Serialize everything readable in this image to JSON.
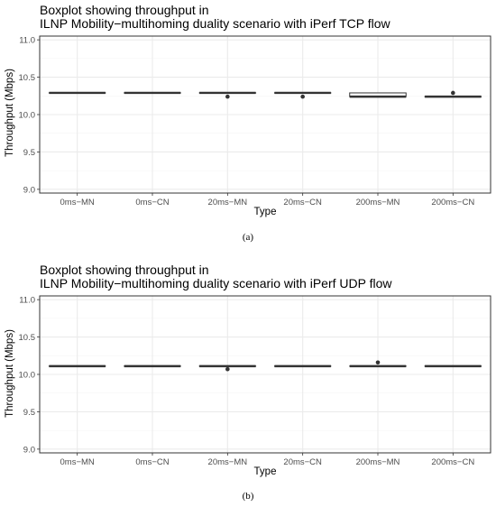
{
  "chart_data": [
    {
      "type": "boxplot",
      "title_lines": [
        "Boxplot showing throughput in",
        "ILNP Mobility−multihoming duality scenario with iPerf TCP flow"
      ],
      "xlabel": "Type",
      "ylabel": "Throughput (Mbps)",
      "ylim": [
        8.95,
        11.05
      ],
      "yticks": [
        9.0,
        9.5,
        10.0,
        10.5,
        11.0
      ],
      "ytick_labels": [
        "9.0",
        "9.5",
        "10.0",
        "10.5",
        "11.0"
      ],
      "grid": true,
      "categories": [
        "0ms−MN",
        "0ms−CN",
        "20ms−MN",
        "20ms−CN",
        "200ms−MN",
        "200ms−CN"
      ],
      "boxes": [
        {
          "q1": 10.29,
          "median": 10.29,
          "q3": 10.29,
          "outliers": []
        },
        {
          "q1": 10.29,
          "median": 10.29,
          "q3": 10.29,
          "outliers": []
        },
        {
          "q1": 10.29,
          "median": 10.29,
          "q3": 10.29,
          "outliers": [
            10.24
          ]
        },
        {
          "q1": 10.29,
          "median": 10.29,
          "q3": 10.29,
          "outliers": [
            10.24
          ]
        },
        {
          "q1": 10.24,
          "median": 10.24,
          "q3": 10.29,
          "outliers": []
        },
        {
          "q1": 10.24,
          "median": 10.24,
          "q3": 10.24,
          "outliers": [
            10.29
          ]
        }
      ],
      "caption": "(a)"
    },
    {
      "type": "boxplot",
      "title_lines": [
        "Boxplot showing throughput in",
        "ILNP Mobility−multihoming duality scenario with iPerf UDP flow"
      ],
      "xlabel": "Type",
      "ylabel": "Throughput (Mbps)",
      "ylim": [
        8.95,
        11.05
      ],
      "yticks": [
        9.0,
        9.5,
        10.0,
        10.5,
        11.0
      ],
      "ytick_labels": [
        "9.0",
        "9.5",
        "10.0",
        "10.5",
        "11.0"
      ],
      "grid": true,
      "categories": [
        "0ms−MN",
        "0ms−CN",
        "20ms−MN",
        "20ms−CN",
        "200ms−MN",
        "200ms−CN"
      ],
      "boxes": [
        {
          "q1": 10.11,
          "median": 10.11,
          "q3": 10.11,
          "outliers": []
        },
        {
          "q1": 10.11,
          "median": 10.11,
          "q3": 10.11,
          "outliers": []
        },
        {
          "q1": 10.11,
          "median": 10.11,
          "q3": 10.11,
          "outliers": [
            10.07
          ]
        },
        {
          "q1": 10.11,
          "median": 10.11,
          "q3": 10.11,
          "outliers": []
        },
        {
          "q1": 10.11,
          "median": 10.11,
          "q3": 10.11,
          "outliers": [
            10.16
          ]
        },
        {
          "q1": 10.11,
          "median": 10.11,
          "q3": 10.11,
          "outliers": []
        }
      ],
      "caption": "(b)"
    }
  ],
  "colors": {
    "box_line": "#333333",
    "box_fill": "#ffffff",
    "outlier": "#333333",
    "grid_major": "#ebebeb",
    "grid_minor": "#f5f5f5",
    "panel_border": "#333333",
    "tick_text": "#4d4d4d"
  }
}
